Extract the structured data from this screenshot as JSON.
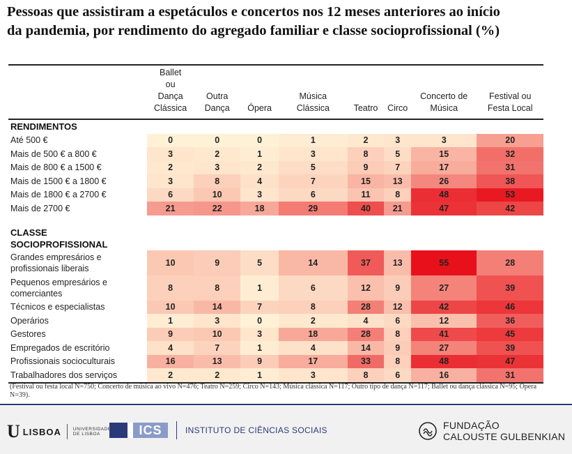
{
  "title": {
    "line1": "Pessoas que assistiram a espetáculos e concertos nos 12 meses anteriores ao início",
    "line2": "da pandemia, por rendimento do agregado familiar e classe socioprofissional (%)"
  },
  "chart_data": {
    "type": "heatmap",
    "title": "Pessoas que assistiram a espetáculos e concertos nos 12 meses anteriores ao início da pandemia, por rendimento do agregado familiar e classe socioprofissional (%)",
    "columns": [
      "Ballet\nou\nDança\nClássica",
      "Outra\nDança",
      "Ópera",
      "Música\nClássica",
      "Teatro",
      "Circo",
      "Concerto de\nMúsica",
      "Festival ou\nFesta Local"
    ],
    "groups": [
      {
        "name": "RENDIMENTOS",
        "rows": [
          {
            "label": "Até 500 €",
            "values": [
              0,
              0,
              0,
              1,
              2,
              3,
              3,
              20
            ]
          },
          {
            "label": "Mais de 500 € a 800 €",
            "values": [
              3,
              2,
              1,
              3,
              8,
              5,
              15,
              32
            ]
          },
          {
            "label": "Mais de 800 € a 1500 €",
            "values": [
              2,
              3,
              2,
              5,
              9,
              7,
              17,
              31
            ]
          },
          {
            "label": "Mais de 1500 € a 1800 €",
            "values": [
              3,
              8,
              4,
              7,
              15,
              13,
              26,
              38
            ]
          },
          {
            "label": "Mais de 1800 € a 2700 €",
            "values": [
              6,
              10,
              3,
              6,
              11,
              8,
              48,
              53
            ]
          },
          {
            "label": "Mais de 2700 €",
            "values": [
              21,
              22,
              18,
              29,
              40,
              21,
              47,
              42
            ]
          }
        ]
      },
      {
        "name": "CLASSE\nSOCIOPROFISSIONAL",
        "rows": [
          {
            "label": "Grandes empresários e\nprofissionais liberais",
            "values": [
              10,
              9,
              5,
              14,
              37,
              13,
              55,
              28
            ]
          },
          {
            "label": "Pequenos empresários e\ncomerciantes",
            "values": [
              8,
              8,
              1,
              6,
              12,
              9,
              27,
              39
            ]
          },
          {
            "label": "Técnicos e especialistas",
            "values": [
              10,
              14,
              7,
              8,
              28,
              12,
              42,
              46
            ]
          },
          {
            "label": "Operários",
            "values": [
              1,
              3,
              0,
              2,
              4,
              6,
              12,
              36
            ]
          },
          {
            "label": "Gestores",
            "values": [
              9,
              10,
              3,
              18,
              28,
              8,
              41,
              45
            ]
          },
          {
            "label": "Empregados de escritório",
            "values": [
              4,
              7,
              1,
              4,
              14,
              9,
              27,
              39
            ]
          },
          {
            "label": "Profissionais socioculturais",
            "values": [
              16,
              13,
              9,
              17,
              33,
              8,
              48,
              47
            ]
          },
          {
            "label": "Trabalhadores dos serviços",
            "values": [
              2,
              2,
              1,
              3,
              8,
              6,
              16,
              31
            ]
          }
        ]
      }
    ],
    "color_scale": {
      "low": "#fff1d6",
      "high": "#e8111b",
      "min": 0,
      "max": 55
    }
  },
  "note": "(Festival ou festa local N=750; Concerto de música ao vivo N=476; Teatro N=259; Circo N=143; Música clássica N=117; Outro tipo de dança N=117; Ballet ou dança clássica N=95; Ópera N=39).",
  "footer": {
    "ulisboa_letter": "U",
    "ulisboa_word": "LISBOA",
    "ulisboa_small_1": "UNIVERSIDADE",
    "ulisboa_small_2": "DE LISBOA",
    "ics_mark": "ICS",
    "ics_name": "INSTITUTO DE CIÊNCIAS SOCIAIS",
    "fcg_line1": "FUNDAÇÃO",
    "fcg_line2": "CALOUSTE GULBENKIAN"
  }
}
